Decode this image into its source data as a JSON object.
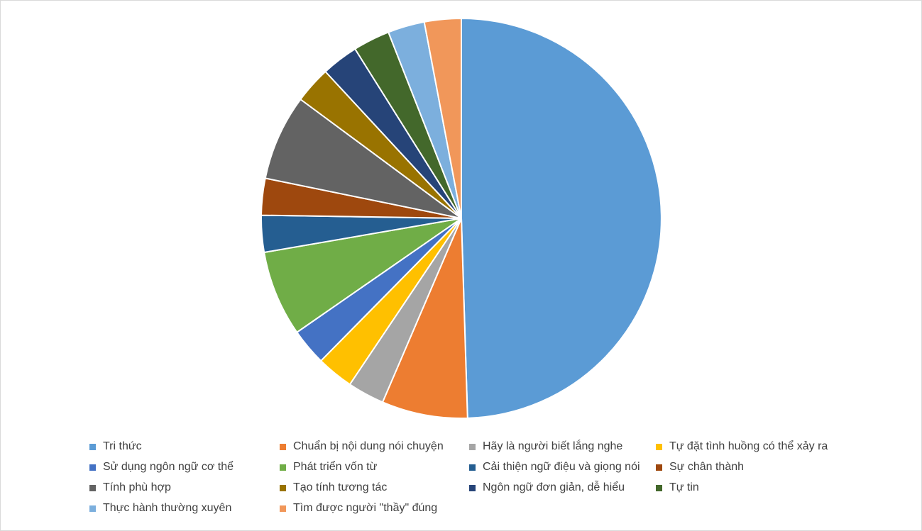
{
  "chart_data": {
    "type": "pie",
    "title": "",
    "start_angle_deg": 0,
    "direction": "clockwise",
    "legend_position": "bottom",
    "slices": [
      {
        "label": "Tri thức",
        "value": 50,
        "color": "#5b9bd5"
      },
      {
        "label": "Chuẩn bị nội dung nói chuyện",
        "value": 7,
        "color": "#ed7d31"
      },
      {
        "label": "Hãy là người biết lắng nghe",
        "value": 3,
        "color": "#a5a5a5"
      },
      {
        "label": "Tự đặt tình huồng có thể xảy ra",
        "value": 3,
        "color": "#ffc000"
      },
      {
        "label": "Sử dụng ngôn ngữ cơ thể",
        "value": 3,
        "color": "#4472c4"
      },
      {
        "label": "Phát triển vốn từ",
        "value": 7,
        "color": "#70ad47"
      },
      {
        "label": "Cải thiện ngữ điệu và giọng nói",
        "value": 3,
        "color": "#255e91"
      },
      {
        "label": "Sự chân thành",
        "value": 3,
        "color": "#9e480e"
      },
      {
        "label": "Tính phù hợp",
        "value": 7,
        "color": "#636363"
      },
      {
        "label": "Tạo tính tương tác",
        "value": 3,
        "color": "#997300"
      },
      {
        "label": "Ngôn ngữ đơn giản, dễ hiểu",
        "value": 3,
        "color": "#264478"
      },
      {
        "label": "Tự tin",
        "value": 3,
        "color": "#43682b"
      },
      {
        "label": "Thực hành thường xuyên",
        "value": 3,
        "color": "#7cafdd"
      },
      {
        "label": "Tìm được người \"thầy\" đúng",
        "value": 3,
        "color": "#f1975a"
      }
    ]
  }
}
